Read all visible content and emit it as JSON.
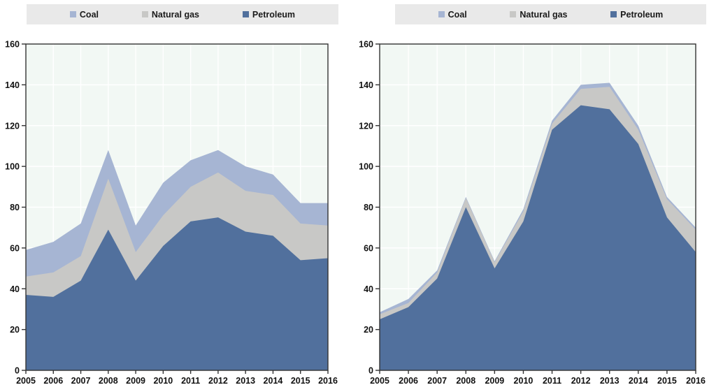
{
  "legend": {
    "items": [
      {
        "label": "Coal",
        "color": "#a6b5d3"
      },
      {
        "label": "Natural gas",
        "color": "#c8c8c6"
      },
      {
        "label": "Petroleum",
        "color": "#51709d"
      }
    ]
  },
  "colors": {
    "plot_background": "#f2f8f4",
    "gridline": "#ffffff",
    "frame": "#333333",
    "tick_text": "#111111",
    "legend_background": "#e9e9e9",
    "coal": "#a6b5d3",
    "natural_gas": "#c8c8c6",
    "petroleum": "#51709d"
  },
  "chart_data": [
    {
      "type": "area",
      "stacked": true,
      "title": "",
      "xlabel": "",
      "ylabel": "",
      "ylim": [
        0,
        160
      ],
      "ytick_step": 20,
      "grid": true,
      "legend_position": "top",
      "categories": [
        "2005",
        "2006",
        "2007",
        "2008",
        "2009",
        "2010",
        "2011",
        "2012",
        "2013",
        "2014",
        "2015",
        "2016"
      ],
      "series": [
        {
          "name": "Petroleum",
          "color": "#51709d",
          "values": [
            37,
            36,
            44,
            69,
            44,
            61,
            73,
            75,
            68,
            66,
            54,
            55
          ]
        },
        {
          "name": "Natural gas",
          "color": "#c8c8c6",
          "values": [
            9,
            12,
            12,
            25,
            14,
            15,
            17,
            22,
            20,
            20,
            18,
            16
          ]
        },
        {
          "name": "Coal",
          "color": "#a6b5d3",
          "values": [
            13,
            15,
            16,
            14,
            13,
            16,
            13,
            11,
            12,
            10,
            10,
            11
          ]
        }
      ],
      "stacked_totals": [
        59,
        63,
        72,
        108,
        71,
        92,
        103,
        108,
        100,
        96,
        82,
        82
      ]
    },
    {
      "type": "area",
      "stacked": true,
      "title": "",
      "xlabel": "",
      "ylabel": "",
      "ylim": [
        0,
        160
      ],
      "ytick_step": 20,
      "grid": true,
      "legend_position": "top",
      "categories": [
        "2005",
        "2006",
        "2007",
        "2008",
        "2009",
        "2010",
        "2011",
        "2012",
        "2013",
        "2014",
        "2015",
        "2016"
      ],
      "series": [
        {
          "name": "Petroleum",
          "color": "#51709d",
          "values": [
            25,
            31,
            45,
            80,
            50,
            73,
            118,
            130,
            128,
            111,
            75,
            58
          ]
        },
        {
          "name": "Natural gas",
          "color": "#c8c8c6",
          "values": [
            2.5,
            2,
            3,
            4.5,
            3,
            5,
            3,
            8,
            11,
            7,
            9,
            11
          ]
        },
        {
          "name": "Coal",
          "color": "#a6b5d3",
          "values": [
            1,
            2,
            1,
            0.5,
            0.5,
            1,
            1.5,
            2,
            2,
            2,
            1,
            1
          ]
        }
      ],
      "stacked_totals": [
        28.5,
        35,
        49,
        85,
        53.5,
        79,
        122.5,
        140,
        141,
        120,
        85,
        70
      ]
    }
  ]
}
